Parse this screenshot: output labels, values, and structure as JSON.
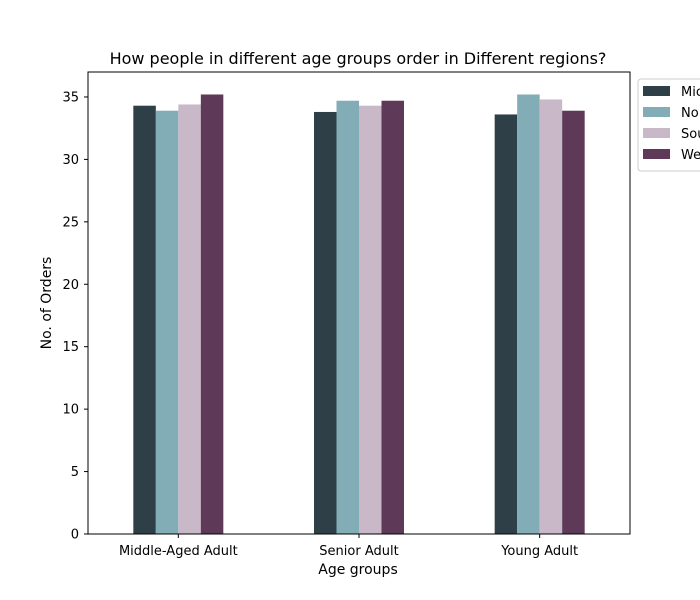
{
  "chart_data": {
    "type": "bar",
    "title": "How people in different age groups order in Different regions?",
    "xlabel": "Age groups",
    "ylabel": "No. of Orders",
    "categories": [
      "Middle-Aged Adult",
      "Senior Adult",
      "Young Adult"
    ],
    "ylim": [
      0,
      37
    ],
    "yticks": [
      0,
      5,
      10,
      15,
      20,
      25,
      30,
      35
    ],
    "legend_position": "top-right (outside)",
    "series": [
      {
        "name": "Midwest",
        "legend_label": "Mic",
        "color": "#2e3f47",
        "values": [
          34.3,
          33.8,
          33.6
        ]
      },
      {
        "name": "Northeast",
        "legend_label": "No",
        "color": "#82adb6",
        "values": [
          33.9,
          34.7,
          35.2
        ]
      },
      {
        "name": "South",
        "legend_label": "Sou",
        "color": "#c8b8c8",
        "values": [
          34.4,
          34.3,
          34.8
        ]
      },
      {
        "name": "West",
        "legend_label": "We",
        "color": "#5e3a58",
        "values": [
          35.2,
          34.7,
          33.9
        ]
      }
    ]
  }
}
